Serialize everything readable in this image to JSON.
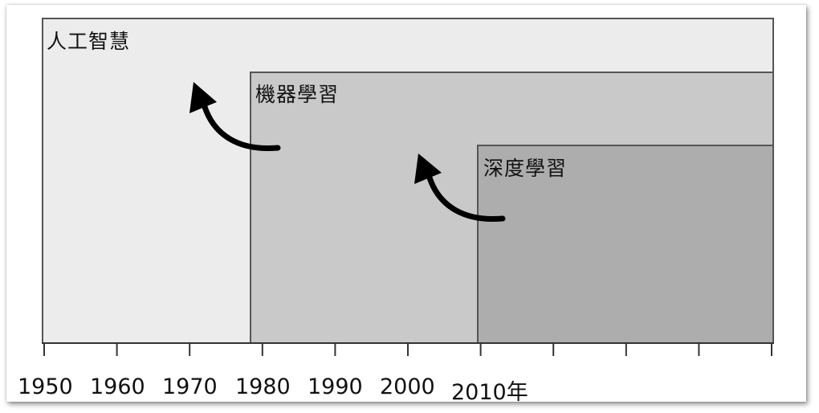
{
  "diagram": {
    "boxes": [
      {
        "id": "ai",
        "label": "人工智慧",
        "start_year": 1950
      },
      {
        "id": "ml",
        "label": "機器學習",
        "start_year": 1980
      },
      {
        "id": "dl",
        "label": "深度學習",
        "start_year": 2010
      }
    ],
    "axis": {
      "tick_labels": [
        "1950",
        "1960",
        "1970",
        "1980",
        "1990",
        "2000",
        "2010年"
      ],
      "tick_count": 11
    },
    "colors": {
      "ai_fill": "#ececec",
      "ml_fill": "#c9c9c9",
      "dl_fill": "#adadad",
      "border": "#555555",
      "arrow": "#000000"
    }
  }
}
